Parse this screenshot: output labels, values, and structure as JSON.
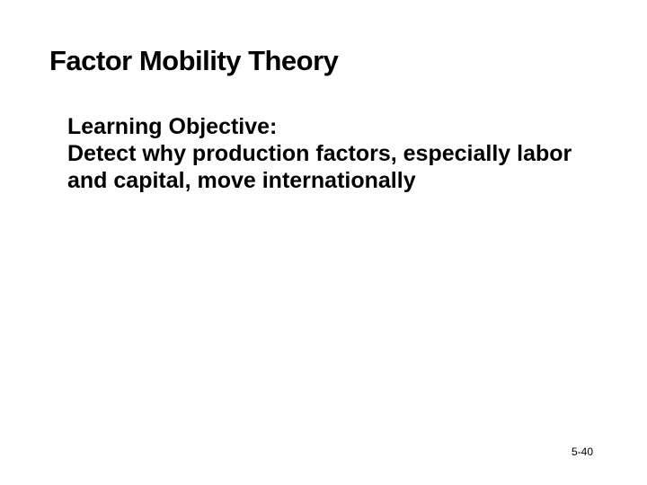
{
  "slide": {
    "title": "Factor Mobility Theory",
    "title_fontsize": 31,
    "title_color": "#000000",
    "objective_label": "Learning Objective:",
    "objective_text": "Detect why production factors, especially labor and capital, move internationally",
    "body_fontsize": 25,
    "body_color": "#000000",
    "page_number": "5-40",
    "page_number_fontsize": 12,
    "background_color": "#ffffff"
  }
}
